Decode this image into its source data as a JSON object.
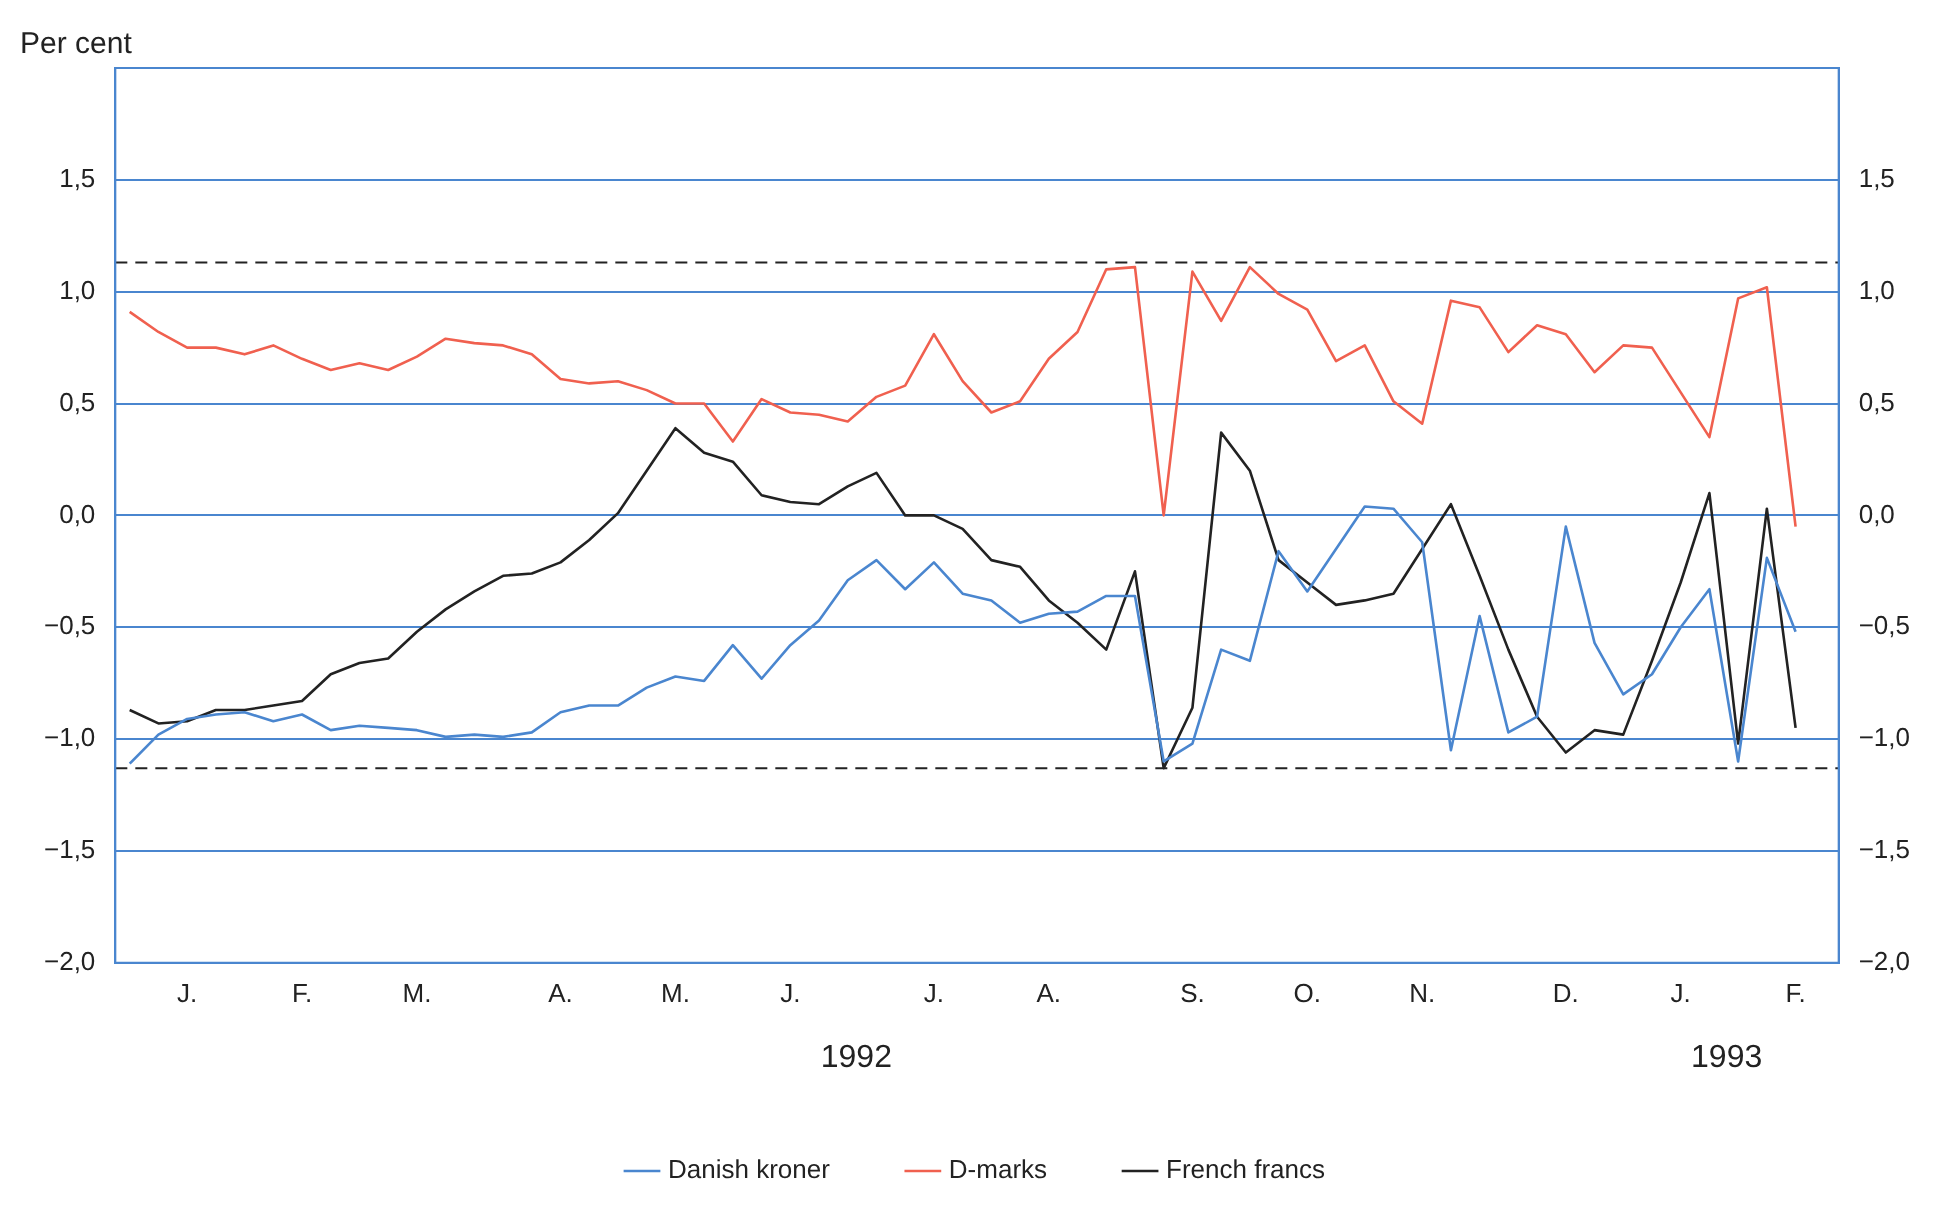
{
  "chart_data": {
    "type": "line",
    "ylabel": "Per cent",
    "categories": [
      null,
      null,
      "J.",
      null,
      null,
      null,
      "F.",
      null,
      null,
      null,
      "M.",
      null,
      null,
      null,
      null,
      "A.",
      null,
      null,
      null,
      "M.",
      null,
      null,
      null,
      "J.",
      null,
      null,
      null,
      null,
      "J.",
      null,
      null,
      null,
      "A.",
      null,
      null,
      null,
      null,
      "S.",
      null,
      null,
      null,
      "O.",
      null,
      null,
      null,
      "N.",
      null,
      null,
      null,
      null,
      "D.",
      null,
      null,
      null,
      "J.",
      null,
      null,
      null,
      "F.",
      null
    ],
    "ylim": [
      -2,
      2
    ],
    "yticks": [
      {
        "value": -2,
        "label": "−2,0"
      },
      {
        "value": -1.5,
        "label": "−1,5"
      },
      {
        "value": -1,
        "label": "−1,0"
      },
      {
        "value": -0.5,
        "label": "−0,5"
      },
      {
        "value": 0,
        "label": "0,0"
      },
      {
        "value": 0.5,
        "label": "0,5"
      },
      {
        "value": 1,
        "label": "1,0"
      },
      {
        "value": 1.5,
        "label": "1,5"
      }
    ],
    "y2lim": [
      -2,
      2
    ],
    "y2ticks": [
      {
        "value": -2,
        "label": "−2,0"
      },
      {
        "value": -1.5,
        "label": "−1,5"
      },
      {
        "value": -1,
        "label": "−1,0"
      },
      {
        "value": -0.5,
        "label": "−0,5"
      },
      {
        "value": 0,
        "label": "0,0"
      },
      {
        "value": 0.5,
        "label": "0,5"
      },
      {
        "value": 1,
        "label": "1,0"
      },
      {
        "value": 1.5,
        "label": "1,5"
      }
    ],
    "grid": "y",
    "legend": "bottom",
    "marker": "none",
    "line_style": "solid",
    "annotations": [
      "1992",
      "1993"
    ],
    "ref_lines": [
      {
        "axis": "y",
        "value": 1.13,
        "color": "#222222",
        "line_style": "dashed"
      },
      {
        "axis": "y",
        "value": -1.13,
        "color": "#222222",
        "line_style": "dashed"
      }
    ],
    "series": [
      {
        "name": "Danish kroner",
        "color": "#4a86cf",
        "values": [
          -1.11,
          -0.98,
          -0.91,
          -0.89,
          -0.88,
          -0.92,
          -0.89,
          -0.96,
          -0.94,
          -0.95,
          -0.96,
          -0.99,
          -0.98,
          -0.99,
          -0.97,
          -0.88,
          -0.85,
          -0.85,
          -0.77,
          -0.72,
          -0.74,
          -0.58,
          -0.73,
          -0.58,
          -0.47,
          -0.29,
          -0.2,
          -0.33,
          -0.21,
          -0.35,
          -0.38,
          -0.48,
          -0.44,
          -0.43,
          -0.36,
          -0.36,
          -1.1,
          -1.02,
          -0.6,
          -0.65,
          -0.16,
          -0.34,
          -0.15,
          0.04,
          0.03,
          -0.12,
          -1.05,
          -0.45,
          -0.97,
          -0.9,
          -0.05,
          -0.57,
          -0.8,
          -0.71,
          -0.5,
          -0.33,
          -1.1,
          -0.19,
          -0.52,
          null
        ]
      },
      {
        "name": "D-marks",
        "color": "#f0604f",
        "values": [
          0.91,
          0.82,
          0.75,
          0.75,
          0.72,
          0.76,
          0.7,
          0.65,
          0.68,
          0.65,
          0.71,
          0.79,
          0.77,
          0.76,
          0.72,
          0.61,
          0.59,
          0.6,
          0.56,
          0.5,
          0.5,
          0.33,
          0.52,
          0.46,
          0.45,
          0.42,
          0.53,
          0.58,
          0.81,
          0.6,
          0.46,
          0.51,
          0.7,
          0.82,
          1.1,
          1.11,
          0.0,
          1.09,
          0.87,
          1.11,
          0.99,
          0.92,
          0.69,
          0.76,
          0.51,
          0.41,
          0.96,
          0.93,
          0.73,
          0.85,
          0.81,
          0.64,
          0.76,
          0.75,
          0.55,
          0.35,
          0.97,
          1.02,
          -0.05,
          null
        ]
      },
      {
        "name": "French francs",
        "color": "#222222",
        "values": [
          -0.87,
          -0.93,
          -0.92,
          -0.87,
          -0.87,
          -0.85,
          -0.83,
          -0.71,
          -0.66,
          -0.64,
          -0.52,
          -0.42,
          -0.34,
          -0.27,
          -0.26,
          -0.21,
          -0.11,
          0.01,
          0.2,
          0.39,
          0.28,
          0.24,
          0.09,
          0.06,
          0.05,
          0.13,
          0.19,
          0.0,
          0.0,
          -0.06,
          -0.2,
          -0.23,
          -0.38,
          -0.48,
          -0.6,
          -0.25,
          -1.13,
          -0.86,
          0.37,
          0.2,
          -0.2,
          -0.3,
          -0.4,
          -0.38,
          -0.35,
          -0.15,
          0.05,
          -0.27,
          -0.6,
          -0.9,
          -1.06,
          -0.96,
          -0.98,
          -0.65,
          -0.3,
          0.1,
          -1.02,
          0.03,
          -0.95,
          null
        ]
      }
    ]
  }
}
